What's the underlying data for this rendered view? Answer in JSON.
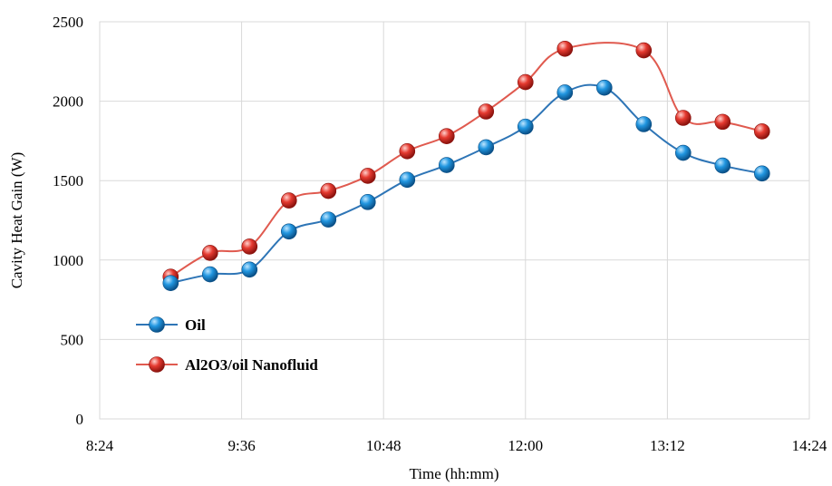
{
  "chart_data": {
    "type": "line",
    "xlabel": "Time (hh:mm)",
    "ylabel": "Cavity Heat Gain (W)",
    "x_ticks": [
      "8:24",
      "9:36",
      "10:48",
      "12:00",
      "13:12",
      "14:24"
    ],
    "x_tick_minutes": [
      504,
      576,
      648,
      720,
      792,
      864
    ],
    "xlim": [
      504,
      864
    ],
    "ylim": [
      0,
      2500
    ],
    "y_ticks": [
      0,
      500,
      1000,
      1500,
      2000,
      2500
    ],
    "grid": true,
    "legend_position": "left",
    "x": [
      "9:00",
      "9:20",
      "9:40",
      "10:00",
      "10:20",
      "10:40",
      "11:00",
      "11:20",
      "11:40",
      "12:00",
      "12:20",
      "12:40",
      "13:00",
      "13:20",
      "13:40",
      "14:00"
    ],
    "series": [
      {
        "name": "Oil",
        "color": "#2e75b6",
        "marker_color": "#1f8fd6",
        "values": [
          855,
          910,
          940,
          1180,
          1255,
          1365,
          1505,
          1598,
          1710,
          1840,
          2055,
          2085,
          1855,
          1675,
          1595,
          1545
        ]
      },
      {
        "name": "Al2O3/oil Nanofluid",
        "color": "#e05a4f",
        "marker_color": "#e02a24",
        "values": [
          895,
          1045,
          1085,
          1375,
          1435,
          1530,
          1685,
          1780,
          1935,
          2120,
          2330,
          null,
          2320,
          1895,
          1870,
          1810
        ]
      }
    ]
  }
}
